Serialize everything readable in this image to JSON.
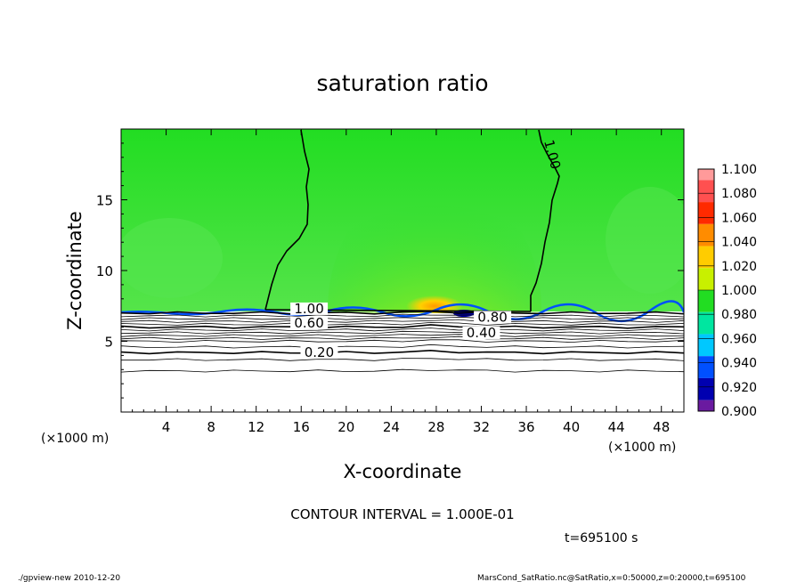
{
  "chart_data": {
    "type": "heatmap",
    "title": "saturation ratio",
    "xlabel": "X-coordinate",
    "ylabel": "Z-coordinate",
    "x_unit_note": "(×1000 m)",
    "z_unit_note": "(×1000 m)",
    "xlim": [
      0,
      50
    ],
    "ylim": [
      0,
      20
    ],
    "x_ticks": [
      4,
      8,
      12,
      16,
      20,
      24,
      28,
      32,
      36,
      40,
      44,
      48
    ],
    "y_ticks": [
      5,
      10,
      15
    ],
    "colorbar": {
      "levels": [
        "1.100",
        "1.080",
        "1.060",
        "1.040",
        "1.020",
        "1.000",
        "0.980",
        "0.960",
        "0.940",
        "0.920",
        "0.900"
      ],
      "colors": [
        "#ff9a9a",
        "#ff5050",
        "#ff2a00",
        "#ff8c00",
        "#ffcc00",
        "#c8f000",
        "#22dd22",
        "#00e6a0",
        "#00c8ff",
        "#0050ff",
        "#0000b0",
        "#6a1aa0"
      ]
    },
    "contour_labels": [
      {
        "text": "1.00",
        "x": 16.7,
        "z": 7.3
      },
      {
        "text": "0.60",
        "x": 16.7,
        "z": 6.3
      },
      {
        "text": "0.20",
        "x": 17.6,
        "z": 4.2
      },
      {
        "text": "0.80",
        "x": 33.0,
        "z": 6.7
      },
      {
        "text": "0.40",
        "x": 32.0,
        "z": 5.6
      },
      {
        "text": "1.00",
        "x": 38.3,
        "z": 18.2
      }
    ],
    "contour_interval": "CONTOUR INTERVAL = 1.000E-01",
    "time": "t=695100 s"
  },
  "footer": {
    "left": "./gpview-new   2010-12-20",
    "right": "MarsCond_SatRatio.nc@SatRatio,x=0:50000,z=0:20000,t=695100"
  }
}
